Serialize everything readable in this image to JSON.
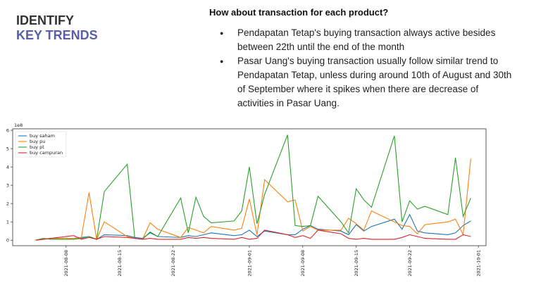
{
  "header": {
    "title": "IDENTIFY",
    "subtitle": "KEY TRENDS"
  },
  "heading": "How about transaction for each product?",
  "bullets": [
    "Pendapatan Tetap's buying transaction always active besides between 22th until the end of the month",
    "Pasar Uang's buying transaction usually follow similar trend to Pendapatan Tetap, unless during around 10th of August and 30th of September where it spikes when there are decrease of activities in Pasar Uang."
  ],
  "chart_data": {
    "type": "line",
    "offset_label": "1e8",
    "x": [
      "2021-08-04",
      "2021-08-05",
      "2021-08-06",
      "2021-08-09",
      "2021-08-10",
      "2021-08-11",
      "2021-08-12",
      "2021-08-13",
      "2021-08-16",
      "2021-08-17",
      "2021-08-18",
      "2021-08-19",
      "2021-08-20",
      "2021-08-23",
      "2021-08-24",
      "2021-08-25",
      "2021-08-26",
      "2021-08-27",
      "2021-08-30",
      "2021-08-31",
      "2021-09-01",
      "2021-09-02",
      "2021-09-03",
      "2021-09-06",
      "2021-09-07",
      "2021-09-08",
      "2021-09-09",
      "2021-09-10",
      "2021-09-13",
      "2021-09-14",
      "2021-09-15",
      "2021-09-16",
      "2021-09-17",
      "2021-09-20",
      "2021-09-21",
      "2021-09-22",
      "2021-09-23",
      "2021-09-24",
      "2021-09-27",
      "2021-09-28",
      "2021-09-29",
      "2021-09-30"
    ],
    "series": [
      {
        "name": "buy saham",
        "color": "#1f77b4",
        "values": [
          0,
          0.05,
          0.1,
          0.1,
          0.15,
          0.2,
          0.05,
          0.3,
          0.25,
          0.15,
          0.1,
          0.4,
          0.2,
          0.15,
          0.25,
          0.2,
          0.3,
          0.4,
          0.25,
          0.3,
          0.55,
          0.2,
          0.5,
          0.3,
          0.3,
          0.6,
          0.8,
          0.6,
          0.5,
          0.3,
          0.85,
          0.5,
          0.75,
          1.15,
          0.6,
          1.4,
          0.5,
          0.4,
          0.3,
          0.4,
          0.8,
          1.05
        ]
      },
      {
        "name": "buy pu",
        "color": "#ff7f0e",
        "values": [
          0,
          0.05,
          0.1,
          0.1,
          0.15,
          2.6,
          0.05,
          1.0,
          0.2,
          0.1,
          0.05,
          0.95,
          0.6,
          0.15,
          0.7,
          0.55,
          0.4,
          0.75,
          0.55,
          0.65,
          2.25,
          0.3,
          3.3,
          2.1,
          2.2,
          0.5,
          0.75,
          0.55,
          0.55,
          1.2,
          0.9,
          0.55,
          1.6,
          1.0,
          0.8,
          0.75,
          0.35,
          0.85,
          1.0,
          1.15,
          0.3,
          4.45
        ]
      },
      {
        "name": "buy pt",
        "color": "#2ca02c",
        "values": [
          0,
          0.1,
          0.05,
          0.05,
          0.1,
          0.2,
          0.05,
          2.65,
          4.15,
          0.1,
          0.05,
          0.45,
          0.2,
          2.3,
          0.4,
          2.35,
          1.3,
          0.95,
          1.05,
          1.6,
          4.0,
          0.9,
          2.5,
          5.75,
          0.8,
          0.75,
          0.8,
          2.4,
          1.0,
          0.4,
          2.8,
          2.2,
          1.8,
          5.7,
          1.0,
          2.15,
          1.7,
          1.85,
          1.4,
          4.5,
          1.3,
          2.3
        ]
      },
      {
        "name": "buy campuran",
        "color": "#d62728",
        "values": [
          0,
          0.05,
          0.1,
          0.25,
          0.05,
          0.15,
          0.05,
          0.2,
          0.15,
          0.1,
          0.05,
          0.1,
          0.05,
          0.05,
          0.15,
          0.1,
          0.15,
          0.1,
          0.05,
          0.15,
          0.05,
          0.1,
          0.55,
          0.3,
          0.15,
          0.25,
          0.1,
          0.55,
          0.35,
          0.1,
          0.05,
          0.1,
          0.05,
          0.05,
          0.15,
          0.3,
          0.2,
          0.1,
          0.05,
          0.05,
          0.3,
          0.2
        ]
      }
    ],
    "xlim": [
      "2021-08-01",
      "2021-10-02"
    ],
    "xticks": [
      "2021-08-08",
      "2021-08-15",
      "2021-08-22",
      "2021-09-01",
      "2021-09-08",
      "2021-09-15",
      "2021-09-22",
      "2021-10-01"
    ],
    "ylim": [
      -0.3,
      6.08
    ],
    "yticks": [
      0,
      1,
      2,
      3,
      4,
      5,
      6
    ],
    "legend": "upper left"
  }
}
